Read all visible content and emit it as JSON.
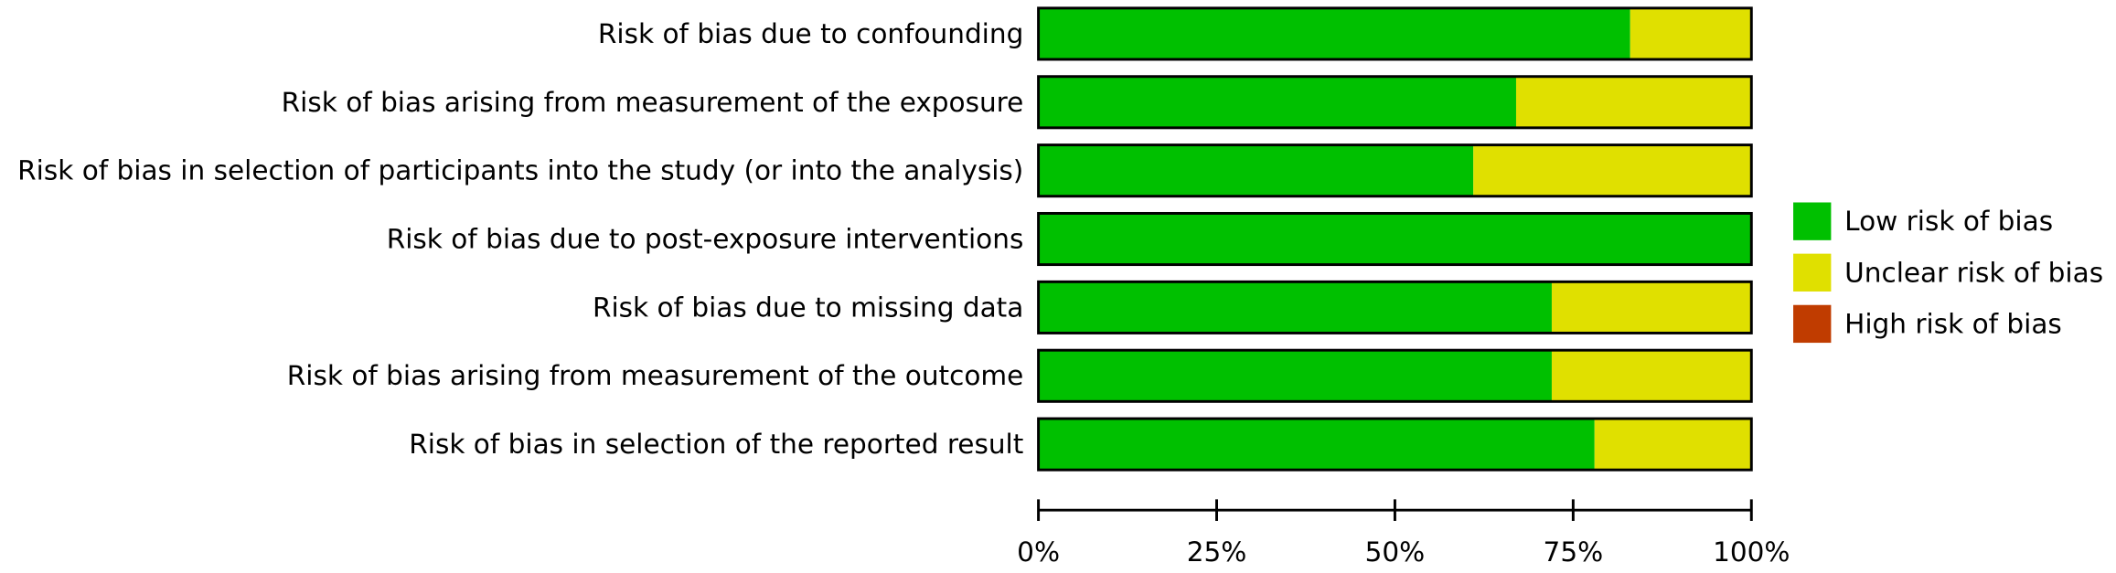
{
  "chart_data": {
    "type": "stacked_barh",
    "categories": [
      "Risk of bias due to confounding",
      "Risk of bias arising from measurement of the exposure",
      "Risk of bias in selection of participants into the study (or into the analysis)",
      "Risk of bias due to post-exposure interventions",
      "Risk of bias due to missing data",
      "Risk of bias arising from measurement of the outcome",
      "Risk of bias in selection of the reported result"
    ],
    "series": [
      {
        "name": "Low risk of bias",
        "color": "#00c000",
        "values": [
          83,
          67,
          61,
          100,
          72,
          72,
          78
        ]
      },
      {
        "name": "Unclear risk of bias",
        "color": "#e0e000",
        "values": [
          17,
          33,
          39,
          0,
          28,
          28,
          22
        ]
      },
      {
        "name": "High risk of bias",
        "color": "#c03c00",
        "values": [
          0,
          0,
          0,
          0,
          0,
          0,
          0
        ]
      }
    ],
    "xlim": [
      0,
      100
    ],
    "xticks": [
      {
        "value": 0,
        "label": "0%"
      },
      {
        "value": 25,
        "label": "25%"
      },
      {
        "value": 50,
        "label": "50%"
      },
      {
        "value": 75,
        "label": "75%"
      },
      {
        "value": 100,
        "label": "100%"
      }
    ],
    "legend": "right"
  }
}
